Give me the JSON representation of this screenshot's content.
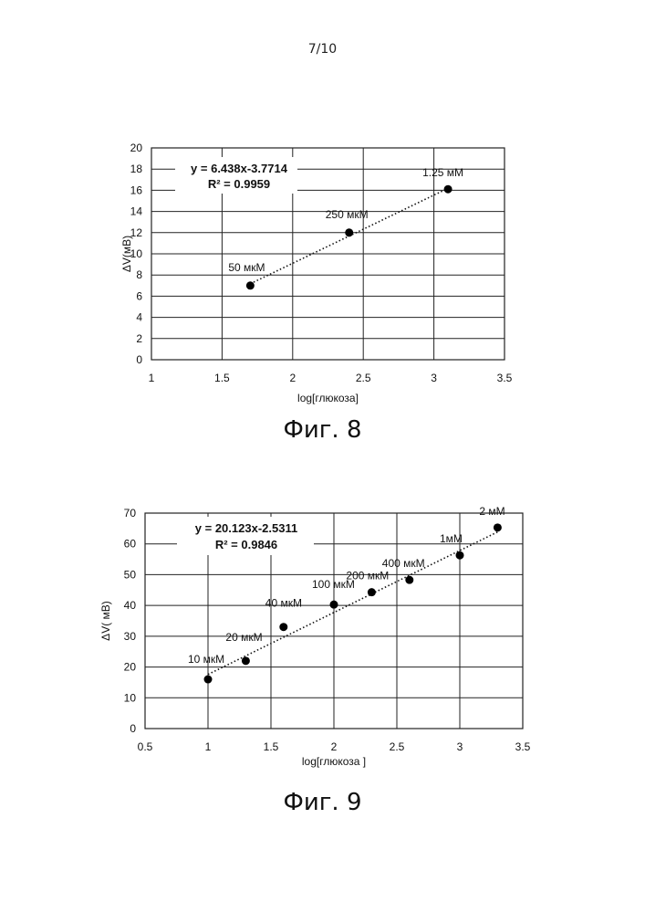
{
  "page_number": "7/10",
  "captions": {
    "fig8": "Фиг. 8",
    "fig9": "Фиг. 9"
  },
  "chart_data": [
    {
      "type": "scatter",
      "xlabel": "log[глюкоза]",
      "ylabel": "ΔV(мВ)",
      "xlim": [
        1,
        3.5
      ],
      "ylim": [
        0,
        20
      ],
      "x_ticks": [
        1,
        1.5,
        2,
        2.5,
        3,
        3.5
      ],
      "y_ticks": [
        0,
        2,
        4,
        6,
        8,
        10,
        12,
        14,
        16,
        18,
        20
      ],
      "x_tick_labels": [
        "1",
        "1.5",
        "2",
        "2.5",
        "3",
        "3.5"
      ],
      "y_tick_labels": [
        "0",
        "2",
        "4",
        "6",
        "8",
        "10",
        "12",
        "14",
        "16",
        "18",
        "20"
      ],
      "grid": true,
      "points": [
        {
          "x": 1.7,
          "y": 7.0,
          "label": "50 мкМ"
        },
        {
          "x": 2.4,
          "y": 12.0,
          "label": "250 мкМ"
        },
        {
          "x": 3.1,
          "y": 16.1,
          "label": "1.25 мМ"
        }
      ],
      "trendline": {
        "slope": 6.438,
        "intercept": -3.7714,
        "x_range": [
          1.7,
          3.1
        ],
        "style": "dotted"
      },
      "equation": "y = 6.438x-3.7714",
      "r_squared": "R² = 0.9959"
    },
    {
      "type": "scatter",
      "xlabel": "log[глюкоза ]",
      "ylabel": "ΔV( мВ)",
      "xlim": [
        0.5,
        3.5
      ],
      "ylim": [
        0,
        70
      ],
      "x_ticks": [
        0.5,
        1,
        1.5,
        2,
        2.5,
        3,
        3.5
      ],
      "y_ticks": [
        0,
        10,
        20,
        30,
        40,
        50,
        60,
        70
      ],
      "x_tick_labels": [
        "0.5",
        "1",
        "1.5",
        "2",
        "2.5",
        "3",
        "3.5"
      ],
      "y_tick_labels": [
        "0",
        "10",
        "20",
        "30",
        "40",
        "50",
        "60",
        "70"
      ],
      "grid": true,
      "points": [
        {
          "x": 1.0,
          "y": 16.0,
          "label": "10 мкМ"
        },
        {
          "x": 1.3,
          "y": 22.0,
          "label": "20 мкМ"
        },
        {
          "x": 1.6,
          "y": 33.0,
          "label": "40 мкМ"
        },
        {
          "x": 2.0,
          "y": 40.3,
          "label": "100 мкМ"
        },
        {
          "x": 2.3,
          "y": 44.3,
          "label": "200 мкМ"
        },
        {
          "x": 2.6,
          "y": 48.3,
          "label": "400 мкМ"
        },
        {
          "x": 3.0,
          "y": 56.3,
          "label": "1мМ"
        },
        {
          "x": 3.3,
          "y": 65.3,
          "label": "2 мМ"
        }
      ],
      "trendline": {
        "slope": 20.123,
        "intercept": -2.5311,
        "x_range": [
          1.0,
          3.3
        ],
        "style": "dotted"
      },
      "equation": "y = 20.123x-2.5311",
      "r_squared": "R² = 0.9846"
    }
  ]
}
